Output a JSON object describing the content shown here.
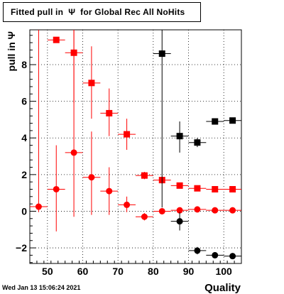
{
  "chart_data": {
    "type": "scatter",
    "title": "Fitted pull in  Ψ  for Global Rec All NoHits",
    "xlabel": "Quality",
    "ylabel": "pull in  Ψ",
    "xlim": [
      45,
      105
    ],
    "ylim": [
      -2.85,
      9.9
    ],
    "xticks": [
      50,
      60,
      70,
      80,
      90,
      100
    ],
    "yticks": [
      -2,
      0,
      2,
      4,
      6,
      8
    ],
    "grid": true,
    "series": [
      {
        "marker": "square",
        "color": "#ff0000",
        "points": [
          {
            "x": 52.5,
            "y": 9.35,
            "xerr": 2.5,
            "ylo": null,
            "yhi": null
          },
          {
            "x": 57.5,
            "y": 8.65,
            "xerr": 2.5,
            "ylo": 5.9,
            "yhi": 9.9
          },
          {
            "x": 62.5,
            "y": 7.0,
            "xerr": 2.5,
            "ylo": 5.05,
            "yhi": 9.0
          },
          {
            "x": 67.5,
            "y": 5.35,
            "xerr": 2.5,
            "ylo": 4.1,
            "yhi": 6.7
          },
          {
            "x": 72.5,
            "y": 4.2,
            "xerr": 2.5,
            "ylo": 3.35,
            "yhi": 5.05
          },
          {
            "x": 77.5,
            "y": 1.95,
            "xerr": 2.5,
            "ylo": 1.75,
            "yhi": 2.15
          },
          {
            "x": 82.5,
            "y": 1.7,
            "xerr": 2.5,
            "ylo": 1.5,
            "yhi": 1.9
          },
          {
            "x": 87.5,
            "y": 1.4,
            "xerr": 2.5,
            "ylo": 1.3,
            "yhi": 1.5
          },
          {
            "x": 92.5,
            "y": 1.25,
            "xerr": 2.5,
            "ylo": 1.15,
            "yhi": 1.35
          },
          {
            "x": 97.5,
            "y": 1.2,
            "xerr": 2.5,
            "ylo": 1.12,
            "yhi": 1.28
          },
          {
            "x": 102.5,
            "y": 1.2,
            "xerr": 2.5,
            "ylo": 1.12,
            "yhi": 1.28
          }
        ]
      },
      {
        "marker": "circle",
        "color": "#ff0000",
        "points": [
          {
            "x": 47.5,
            "y": 0.25,
            "xerr": 2.5,
            "ylo": -0.05,
            "yhi": 9.9
          },
          {
            "x": 52.5,
            "y": 1.2,
            "xerr": 2.5,
            "ylo": -1.1,
            "yhi": 3.6
          },
          {
            "x": 57.5,
            "y": 3.2,
            "xerr": 2.5,
            "ylo": -0.3,
            "yhi": 9.9
          },
          {
            "x": 62.5,
            "y": 1.85,
            "xerr": 2.5,
            "ylo": -0.2,
            "yhi": 4.35
          },
          {
            "x": 67.5,
            "y": 1.1,
            "xerr": 2.5,
            "ylo": -0.2,
            "yhi": 2.4
          },
          {
            "x": 72.5,
            "y": 0.35,
            "xerr": 2.5,
            "ylo": -0.05,
            "yhi": 0.8
          },
          {
            "x": 77.5,
            "y": -0.3,
            "xerr": 2.5,
            "ylo": -0.5,
            "yhi": -0.1
          },
          {
            "x": 82.5,
            "y": 0.0,
            "xerr": 2.5,
            "ylo": -0.1,
            "yhi": 0.1
          },
          {
            "x": 87.5,
            "y": 0.05,
            "xerr": 2.5,
            "ylo": -0.05,
            "yhi": 0.15
          },
          {
            "x": 92.5,
            "y": 0.1,
            "xerr": 2.5,
            "ylo": 0.03,
            "yhi": 0.17
          },
          {
            "x": 97.5,
            "y": 0.05,
            "xerr": 2.5,
            "ylo": -0.02,
            "yhi": 0.12
          },
          {
            "x": 102.5,
            "y": 0.05,
            "xerr": 2.5,
            "ylo": -0.02,
            "yhi": 0.12
          }
        ]
      },
      {
        "marker": "square",
        "color": "#000000",
        "points": [
          {
            "x": 82.5,
            "y": 8.6,
            "xerr": 2.5,
            "ylo": 0.2,
            "yhi": 9.9
          },
          {
            "x": 87.5,
            "y": 4.1,
            "xerr": 2.5,
            "ylo": 3.2,
            "yhi": 4.9
          },
          {
            "x": 92.5,
            "y": 3.75,
            "xerr": 2.5,
            "ylo": 3.5,
            "yhi": 4.0
          },
          {
            "x": 97.5,
            "y": 4.9,
            "xerr": 2.5,
            "ylo": null,
            "yhi": null
          },
          {
            "x": 102.5,
            "y": 4.95,
            "xerr": 2.5,
            "ylo": null,
            "yhi": null
          }
        ]
      },
      {
        "marker": "circle",
        "color": "#000000",
        "points": [
          {
            "x": 87.5,
            "y": -0.55,
            "xerr": 2.5,
            "ylo": -1.05,
            "yhi": -0.05
          },
          {
            "x": 92.5,
            "y": -2.15,
            "xerr": 2.5,
            "ylo": -2.35,
            "yhi": -1.95
          },
          {
            "x": 97.5,
            "y": -2.4,
            "xerr": 2.5,
            "ylo": null,
            "yhi": null
          },
          {
            "x": 102.5,
            "y": -2.45,
            "xerr": 2.5,
            "ylo": null,
            "yhi": null
          }
        ]
      }
    ]
  },
  "footer": {
    "date_stamp": "Wed Jan 13 15:06:24 2021"
  }
}
